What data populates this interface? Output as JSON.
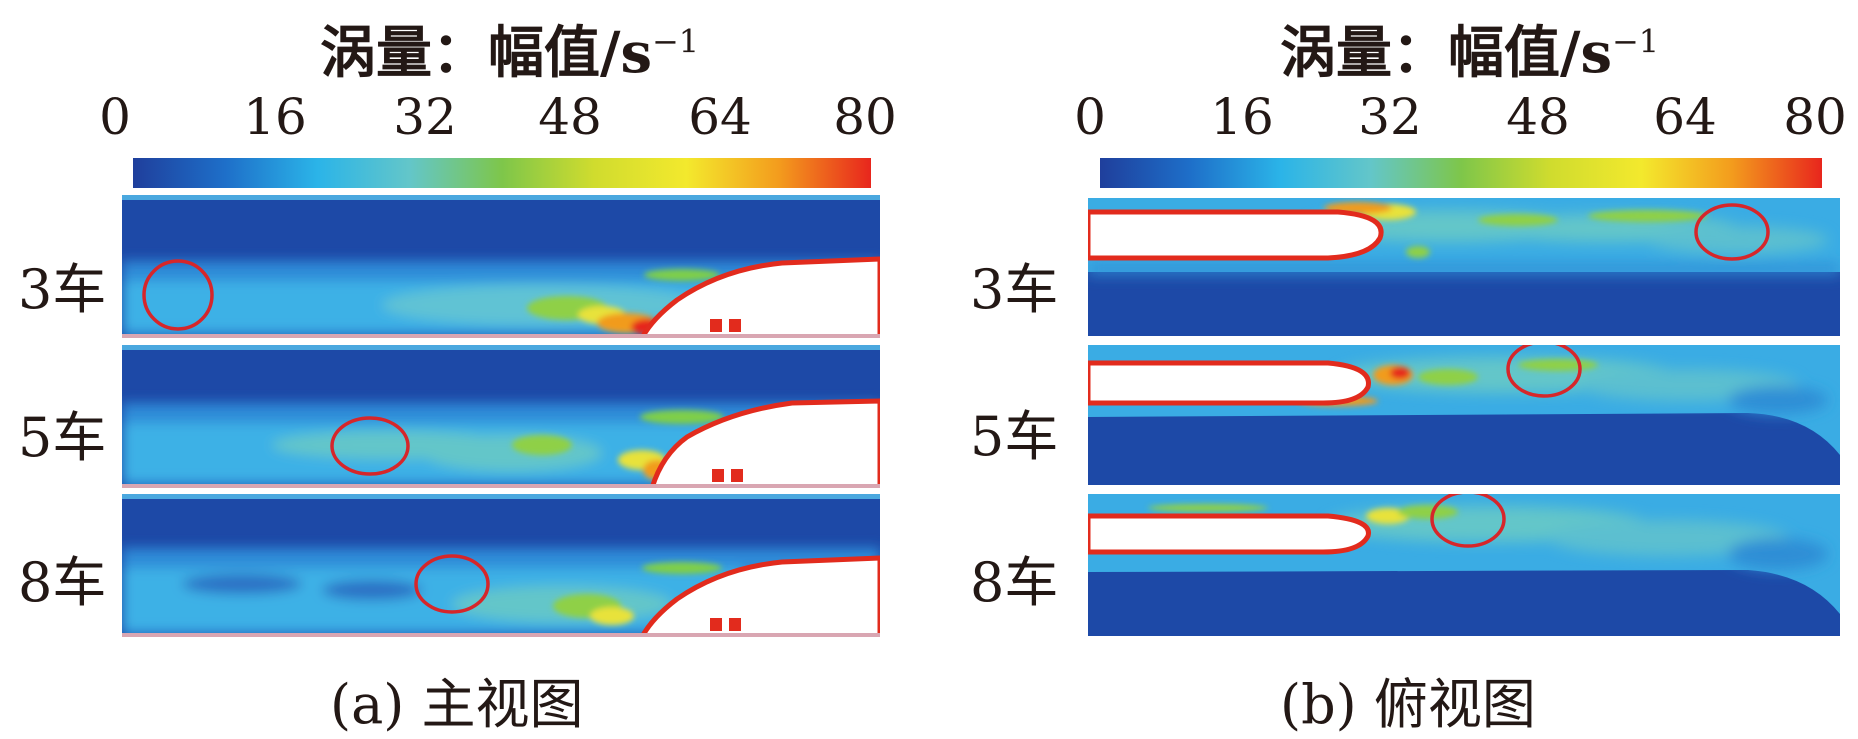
{
  "chart_data": [
    {
      "type": "heatmap",
      "colorbar": {
        "title": "涡量：幅值/s",
        "title_sup": "−1",
        "min": 0,
        "max": 80,
        "ticks": [
          "0",
          "16",
          "32",
          "48",
          "64",
          "80"
        ],
        "colors": [
          "#1f3f9c",
          "#1e6fc9",
          "#2bb4e8",
          "#63c6c9",
          "#7ec64a",
          "#d0dc2e",
          "#f3e92d",
          "#f39c1d",
          "#e8261d"
        ]
      },
      "rows": [
        "3车",
        "5车",
        "8车"
      ],
      "caption": "(a) 主视图"
    },
    {
      "type": "heatmap",
      "colorbar": {
        "title": "涡量：幅值/s",
        "title_sup": "−1",
        "min": 0,
        "max": 80,
        "ticks": [
          "0",
          "16",
          "32",
          "48",
          "64",
          "80"
        ],
        "colors": [
          "#1f3f9c",
          "#1e6fc9",
          "#2bb4e8",
          "#63c6c9",
          "#7ec64a",
          "#d0dc2e",
          "#f3e92d",
          "#f39c1d",
          "#e8261d"
        ]
      },
      "rows": [
        "3车",
        "5车",
        "8车"
      ],
      "caption": "(b) 俯视图"
    }
  ]
}
